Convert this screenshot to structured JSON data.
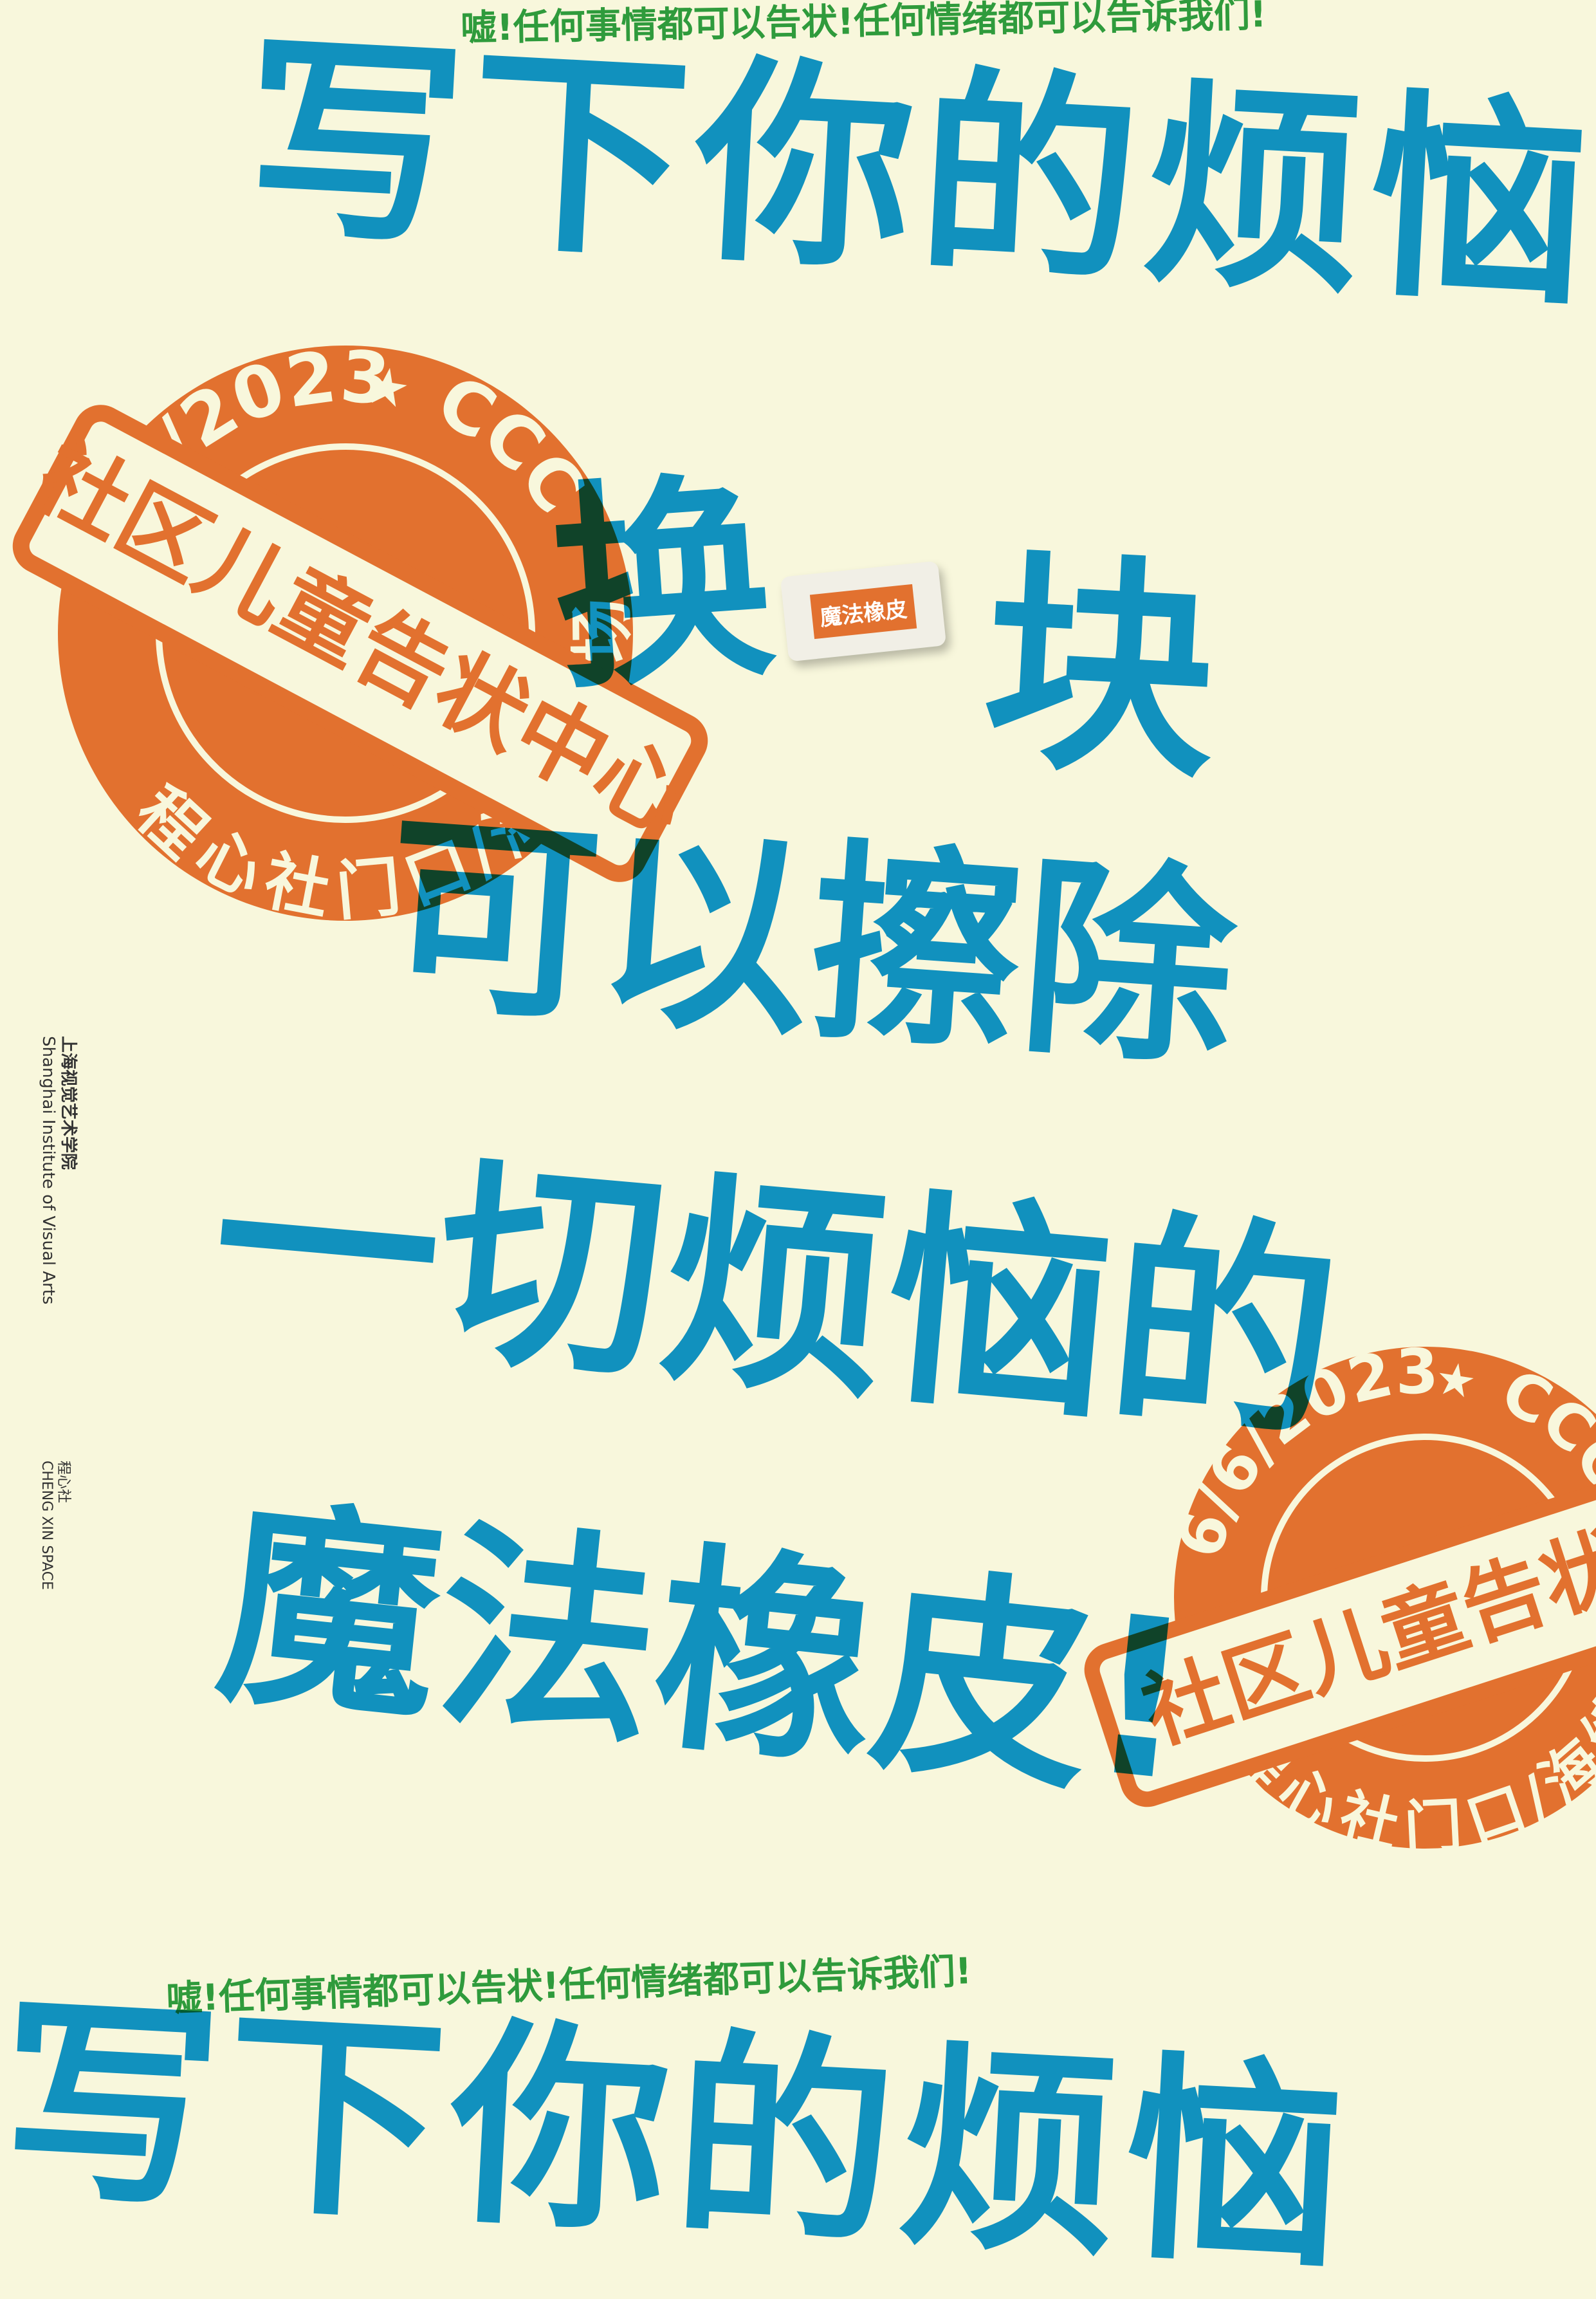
{
  "tagline_top": "嘘!任何事情都可以告状!任何情绪都可以告诉我们!",
  "headline": [
    "写下你的烦恼",
    "换",
    "块",
    "可以擦除",
    "一切烦恼的",
    "魔法橡皮!"
  ],
  "eraser_label": "魔法橡皮",
  "stamps": [
    {
      "date": "6/6/2023",
      "star": "★",
      "code": "CCC",
      "title": "社区儿童告状中心",
      "place": "程心社门口/海绵广场"
    },
    {
      "date": "6/6/2023",
      "star": "★",
      "code": "CCC",
      "title": "社区儿童告状中心",
      "place": "程心社门口/海绵广场"
    }
  ],
  "logos": {
    "school_cn": "上海视觉艺术学院",
    "school_en": "Shanghai Institute of Visual Arts",
    "space_cn": "程心社",
    "space_en": "CHENG XIN SPACE"
  },
  "tagline_bottom": "嘘!任何事情都可以告状!任何情绪都可以告诉我们!",
  "headline_bottom": "写下你的烦恼"
}
